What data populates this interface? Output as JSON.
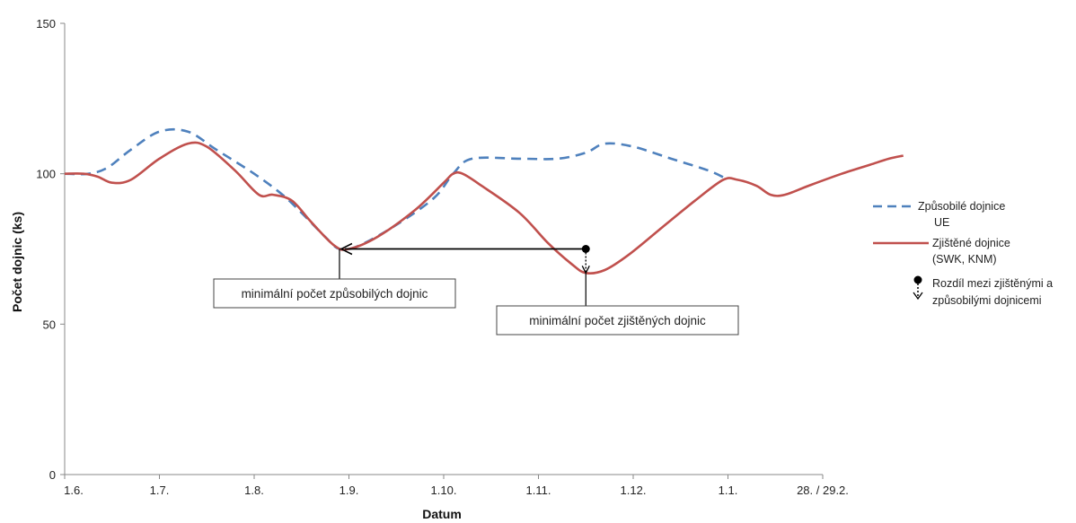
{
  "chart_data": {
    "type": "line",
    "xlabel": "Datum",
    "ylabel": "Počet dojnic (ks)",
    "ylim": [
      0,
      150
    ],
    "yticks": [
      0,
      50,
      100,
      150
    ],
    "categories": [
      "1.6.",
      "1.7.",
      "1.8.",
      "1.9.",
      "1.10.",
      "1.11.",
      "1.12.",
      "1.1.",
      "28. / 29.2."
    ],
    "grid": false,
    "legend_position": "right",
    "series": [
      {
        "name": "Způsobilé dojnice UE",
        "legend_lines": [
          "Způsobilé dojnice",
          "UE"
        ],
        "style": "dashed",
        "color": "#4f81bd",
        "points": [
          [
            0,
            100
          ],
          [
            0.25,
            100
          ],
          [
            0.45,
            102
          ],
          [
            0.7,
            108
          ],
          [
            1.0,
            114
          ],
          [
            1.3,
            114
          ],
          [
            1.6,
            108
          ],
          [
            2.0,
            100
          ],
          [
            2.3,
            93
          ],
          [
            2.5,
            87
          ],
          [
            2.75,
            79
          ],
          [
            2.9,
            75
          ],
          [
            3.1,
            76
          ],
          [
            3.5,
            83
          ],
          [
            3.9,
            92
          ],
          [
            4.1,
            100
          ],
          [
            4.3,
            105
          ],
          [
            4.8,
            105
          ],
          [
            5.2,
            105
          ],
          [
            5.5,
            107
          ],
          [
            5.7,
            110
          ],
          [
            6.0,
            109
          ],
          [
            6.4,
            105
          ],
          [
            6.8,
            101
          ],
          [
            7.0,
            98
          ]
        ]
      },
      {
        "name": "Zjištěné dojnice (SWK, KNM)",
        "legend_lines": [
          "Zjištěné dojnice",
          "(SWK, KNM)"
        ],
        "style": "solid",
        "color": "#c0504d",
        "points": [
          [
            0,
            100
          ],
          [
            0.2,
            100
          ],
          [
            0.35,
            99
          ],
          [
            0.5,
            97
          ],
          [
            0.7,
            98
          ],
          [
            1.0,
            105
          ],
          [
            1.3,
            110
          ],
          [
            1.5,
            109
          ],
          [
            1.8,
            101
          ],
          [
            2.05,
            93
          ],
          [
            2.2,
            93
          ],
          [
            2.4,
            91
          ],
          [
            2.6,
            84
          ],
          [
            2.85,
            76
          ],
          [
            3.0,
            75
          ],
          [
            3.3,
            79
          ],
          [
            3.7,
            88
          ],
          [
            4.0,
            97
          ],
          [
            4.1,
            100
          ],
          [
            4.2,
            100
          ],
          [
            4.4,
            96
          ],
          [
            4.8,
            87
          ],
          [
            5.1,
            77
          ],
          [
            5.35,
            70
          ],
          [
            5.5,
            67
          ],
          [
            5.7,
            68
          ],
          [
            5.95,
            73
          ],
          [
            6.3,
            82
          ],
          [
            6.65,
            91
          ],
          [
            6.95,
            98
          ],
          [
            7.1,
            98
          ],
          [
            7.3,
            96
          ],
          [
            7.45,
            93
          ],
          [
            7.6,
            93
          ],
          [
            7.85,
            96
          ],
          [
            8.2,
            100
          ],
          [
            8.5,
            103
          ],
          [
            8.7,
            105
          ],
          [
            8.85,
            106
          ]
        ]
      }
    ],
    "extra_legend": {
      "label_lines": [
        "Rozdíl mezi zjištěnými a",
        "způsobilými dojnicemi"
      ]
    },
    "annotations": [
      {
        "text": "minimální  počet způsobilých dojnic",
        "point": [
          2.9,
          75
        ]
      },
      {
        "text": "minimální  počet zjištěných dojnic",
        "point": [
          5.5,
          67
        ]
      }
    ],
    "difference_marker": {
      "x": 5.5,
      "y_from": 75,
      "y_to": 67
    }
  }
}
